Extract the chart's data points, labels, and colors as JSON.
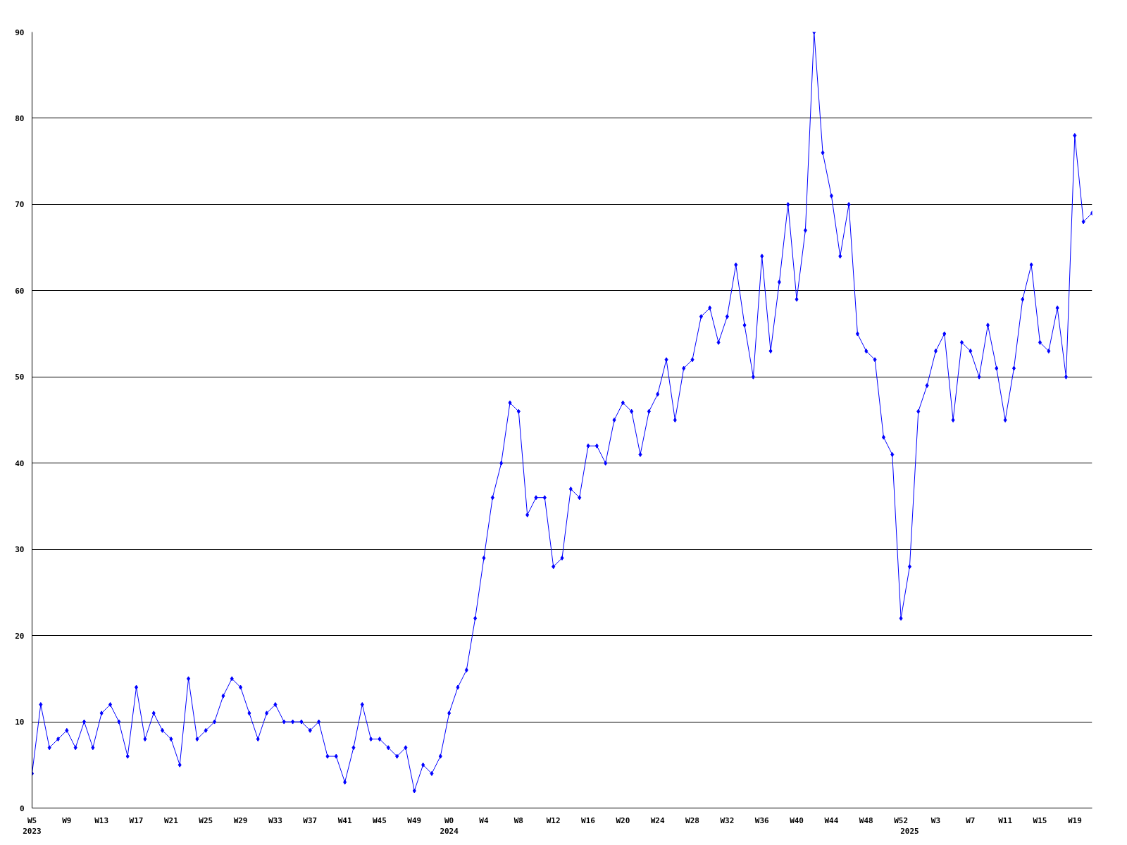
{
  "chart_data": {
    "type": "line",
    "categories": [
      "W5\n2023",
      null,
      null,
      null,
      "W9",
      null,
      null,
      null,
      "W13",
      null,
      null,
      null,
      "W17",
      null,
      null,
      null,
      "W21",
      null,
      null,
      null,
      "W25",
      null,
      null,
      null,
      "W29",
      null,
      null,
      null,
      "W33",
      null,
      null,
      null,
      "W37",
      null,
      null,
      null,
      "W41",
      null,
      null,
      null,
      "W45",
      null,
      null,
      null,
      "W49",
      null,
      null,
      null,
      "W0\n2024",
      null,
      null,
      null,
      "W4",
      null,
      null,
      null,
      "W8",
      null,
      null,
      null,
      "W12",
      null,
      null,
      null,
      "W16",
      null,
      null,
      null,
      "W20",
      null,
      null,
      null,
      "W24",
      null,
      null,
      null,
      "W28",
      null,
      null,
      null,
      "W32",
      null,
      null,
      null,
      "W36",
      null,
      null,
      null,
      "W40",
      null,
      null,
      null,
      "W44",
      null,
      null,
      null,
      "W48",
      null,
      null,
      null,
      "W52",
      "\n2025",
      null,
      null,
      "W3",
      null,
      null,
      null,
      "W7",
      null,
      null,
      null,
      "W11",
      null,
      null,
      null,
      "W15",
      null,
      null,
      null,
      "W19",
      null,
      null
    ],
    "series": [
      {
        "color": "#0000ff",
        "values": [
          4,
          12,
          7,
          8,
          9,
          7,
          10,
          7,
          11,
          12,
          10,
          6,
          14,
          8,
          11,
          9,
          8,
          5,
          15,
          8,
          9,
          10,
          13,
          15,
          14,
          11,
          8,
          11,
          12,
          10,
          10,
          10,
          9,
          10,
          6,
          6,
          3,
          7,
          12,
          8,
          8,
          7,
          6,
          7,
          2,
          5,
          4,
          6,
          11,
          14,
          16,
          22,
          29,
          36,
          40,
          47,
          46,
          34,
          36,
          36,
          28,
          29,
          37,
          36,
          42,
          42,
          40,
          45,
          47,
          46,
          41,
          46,
          48,
          52,
          45,
          51,
          52,
          57,
          58,
          54,
          57,
          63,
          56,
          50,
          64,
          53,
          61,
          70,
          59,
          67,
          90,
          76,
          71,
          64,
          70,
          55,
          53,
          52,
          43,
          41,
          22,
          28,
          46,
          49,
          53,
          55,
          45,
          54,
          53,
          50,
          56,
          51,
          45,
          51,
          59,
          63,
          54,
          53,
          58,
          50,
          78,
          68,
          69
        ]
      }
    ],
    "ylim": [
      0,
      90
    ],
    "yticks": [
      0,
      10,
      20,
      30,
      40,
      50,
      60,
      70,
      80,
      90
    ],
    "grid": "y",
    "marker": "diamond",
    "line_style": "solid"
  }
}
